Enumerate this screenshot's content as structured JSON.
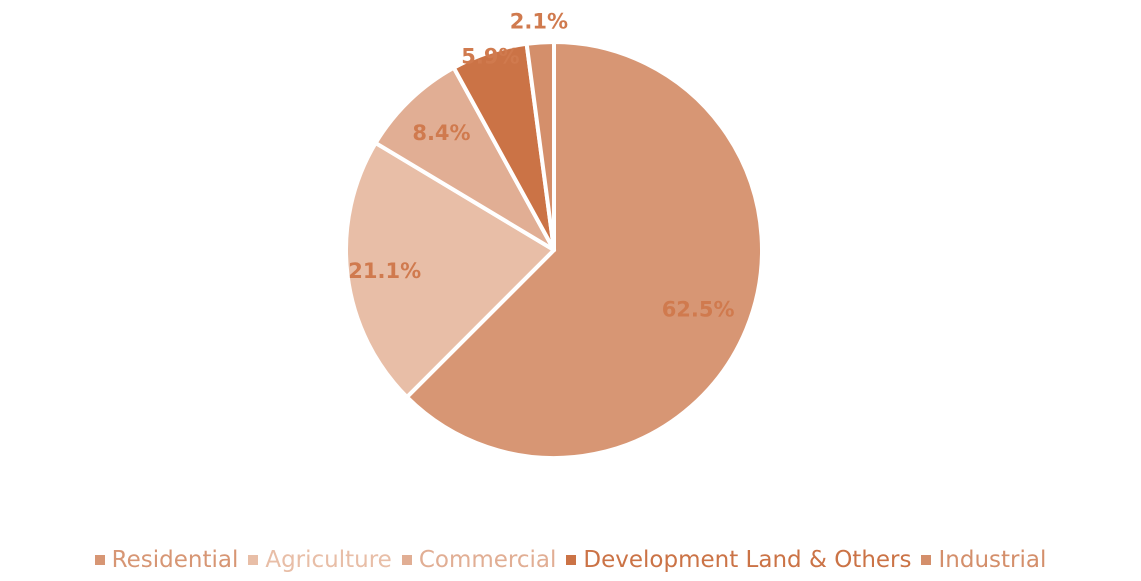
{
  "chart_data": {
    "type": "pie",
    "title": "",
    "legend_placement": "bottom",
    "label_color": "#D07A4E",
    "slices": [
      {
        "name": "Residential",
        "value": 62.5,
        "label": "62.5%",
        "color": "#D79674"
      },
      {
        "name": "Agriculture",
        "value": 21.1,
        "label": "21.1%",
        "color": "#E8BEA7"
      },
      {
        "name": "Commercial",
        "value": 8.4,
        "label": "8.4%",
        "color": "#E1AE94"
      },
      {
        "name": "Development Land & Others",
        "value": 5.9,
        "label": "5.9%",
        "color": "#CB7346"
      },
      {
        "name": "Industrial",
        "value": 2.1,
        "label": "2.1%",
        "color": "#D48F6B"
      }
    ]
  }
}
